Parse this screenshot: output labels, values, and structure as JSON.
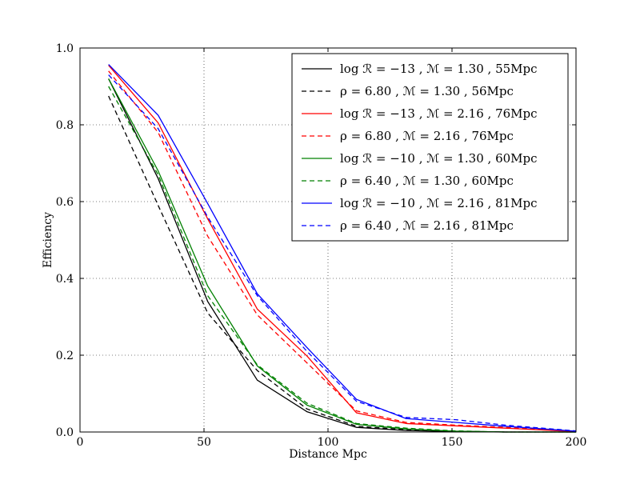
{
  "chart_data": {
    "type": "line",
    "title": "",
    "xlabel": "Distance Mpc",
    "ylabel": "Efficiency",
    "xlim": [
      0,
      200
    ],
    "ylim": [
      0.0,
      1.0
    ],
    "xticks": [
      0,
      50,
      100,
      150,
      200
    ],
    "xtick_labels": [
      "0",
      "50",
      "100",
      "150",
      "200"
    ],
    "yticks": [
      0.0,
      0.2,
      0.4,
      0.6,
      0.8,
      1.0
    ],
    "ytick_labels": [
      "0.0",
      "0.2",
      "0.4",
      "0.6",
      "0.8",
      "1.0"
    ],
    "grid": true,
    "legend_position": "top-right",
    "x": [
      11.5,
      31.5,
      51.5,
      71.5,
      91.5,
      111.5,
      131.5,
      151.5,
      171.5,
      200
    ],
    "series": [
      {
        "name": "log ℛ = −13 , ℳ = 1.30 , 55Mpc",
        "color": "#000000",
        "dash": "solid",
        "values": [
          0.92,
          0.66,
          0.34,
          0.135,
          0.053,
          0.012,
          0.004,
          0.001,
          0.0,
          0.0
        ]
      },
      {
        "name": "ρ = 6.80 , ℳ = 1.30 , 56Mpc",
        "color": "#000000",
        "dash": "dashed",
        "values": [
          0.875,
          0.59,
          0.31,
          0.16,
          0.06,
          0.015,
          0.006,
          0.002,
          0.0,
          0.0
        ]
      },
      {
        "name": "log ℛ = −13 , ℳ = 2.16 , 76Mpc",
        "color": "#ff0000",
        "dash": "solid",
        "values": [
          0.955,
          0.805,
          0.555,
          0.32,
          0.198,
          0.05,
          0.022,
          0.016,
          0.01,
          0.001
        ]
      },
      {
        "name": "ρ = 6.80 , ℳ = 2.16 , 76Mpc",
        "color": "#ff0000",
        "dash": "dashed",
        "values": [
          0.94,
          0.78,
          0.51,
          0.305,
          0.18,
          0.055,
          0.025,
          0.018,
          0.012,
          0.002
        ]
      },
      {
        "name": "log ℛ = −10 , ℳ = 1.30 , 60Mpc",
        "color": "#008000",
        "dash": "solid",
        "values": [
          0.92,
          0.68,
          0.38,
          0.172,
          0.07,
          0.02,
          0.008,
          0.002,
          0.0,
          0.0
        ]
      },
      {
        "name": "ρ = 6.40 , ℳ = 1.30 , 60Mpc",
        "color": "#008000",
        "dash": "dashed",
        "values": [
          0.9,
          0.67,
          0.355,
          0.175,
          0.075,
          0.022,
          0.01,
          0.003,
          0.0,
          0.0
        ]
      },
      {
        "name": "log ℛ = −10 , ℳ = 2.16 , 81Mpc",
        "color": "#0000ff",
        "dash": "solid",
        "values": [
          0.957,
          0.825,
          0.595,
          0.36,
          0.22,
          0.085,
          0.035,
          0.025,
          0.015,
          0.002
        ]
      },
      {
        "name": "ρ = 6.40 , ℳ = 2.16 , 81Mpc",
        "color": "#0000ff",
        "dash": "dashed",
        "values": [
          0.93,
          0.79,
          0.56,
          0.355,
          0.21,
          0.08,
          0.038,
          0.032,
          0.018,
          0.003
        ]
      }
    ]
  }
}
